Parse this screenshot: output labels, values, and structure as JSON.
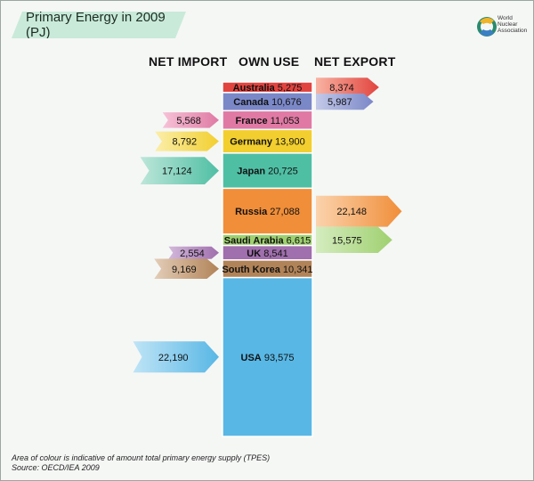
{
  "title": "Primary Energy in 2009 (PJ)",
  "logo": {
    "line1": "World",
    "line2": "Nuclear",
    "line3": "Association"
  },
  "column_headers": {
    "import": "NET IMPORT",
    "own_use": "OWN USE",
    "export": "NET EXPORT"
  },
  "footnote": {
    "line1": "Area of colour is indicative of amount total primary energy supply (TPES)",
    "line2": "Source: OECD/IEA 2009"
  },
  "chart_data": {
    "type": "bar",
    "title": "Primary Energy in 2009 (PJ)",
    "unit": "PJ",
    "categories": [
      "Australia",
      "Canada",
      "France",
      "Germany",
      "Japan",
      "Russia",
      "Saudi Arabia",
      "UK",
      "South Korea",
      "USA"
    ],
    "series": [
      {
        "name": "OWN USE",
        "values": [
          5275,
          10676,
          11053,
          13900,
          20725,
          27088,
          6615,
          8541,
          10341,
          93575
        ]
      },
      {
        "name": "NET IMPORT",
        "values": [
          null,
          null,
          5568,
          8792,
          17124,
          null,
          null,
          2554,
          9169,
          22190
        ]
      },
      {
        "name": "NET EXPORT",
        "values": [
          8374,
          5987,
          null,
          null,
          null,
          22148,
          15575,
          null,
          null,
          null
        ]
      }
    ],
    "display": {
      "own_use": [
        "5,275",
        "10,676",
        "11,053",
        "13,900",
        "20,725",
        "27,088",
        "6,615",
        "8,541",
        "10,341",
        "93,575"
      ],
      "import": [
        null,
        null,
        "5,568",
        "8,792",
        "17,124",
        null,
        null,
        "2,554",
        "9,169",
        "22,190"
      ],
      "export": [
        "8,374",
        "5,987",
        null,
        null,
        null,
        "22,148",
        "15,575",
        null,
        null,
        null
      ]
    },
    "colors": [
      [
        "#e1443f",
        "#f8b3a2"
      ],
      [
        "#7b88c8",
        "#c3c9e8"
      ],
      [
        "#e07aa4",
        "#f6c2d6"
      ],
      [
        "#f2cf2f",
        "#fbeeaa"
      ],
      [
        "#4fbfa4",
        "#bde6d9"
      ],
      [
        "#f08e39",
        "#fbd3ad"
      ],
      [
        "#9fd070",
        "#d5ecbf"
      ],
      [
        "#a06fad",
        "#d2b8da"
      ],
      [
        "#b18358",
        "#e3cdb7"
      ],
      [
        "#58b7e5",
        "#bfe4f6"
      ]
    ],
    "legend": "none",
    "grid": false
  }
}
